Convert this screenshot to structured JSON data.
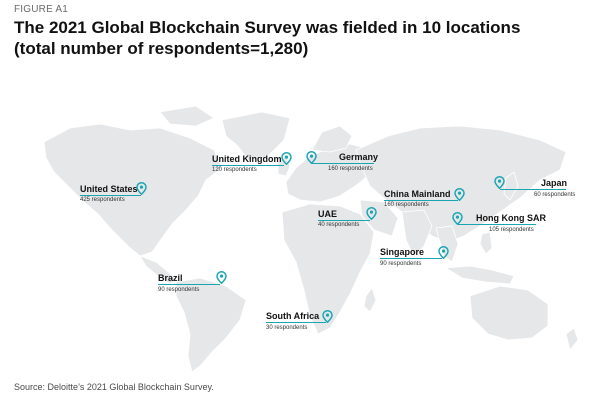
{
  "figure_label": "FIGURE A1",
  "title_line1": "The 2021 Global Blockchain Survey was fielded in 10 locations",
  "title_line2": "(total number of respondents=1,280)",
  "source": "Source: Deloitte’s 2021 Global Blockchain Survey.",
  "colors": {
    "accent": "#1aa5b3",
    "land": "#e6e7e9",
    "text": "#111111"
  },
  "pin_icon": "location-pin-icon",
  "locations": [
    {
      "name": "United Kingdom",
      "respondents": "120 respondents",
      "count": 120
    },
    {
      "name": "Germany",
      "respondents": "160 respondents",
      "count": 160
    },
    {
      "name": "United States",
      "respondents": "425 respondents",
      "count": 425
    },
    {
      "name": "China Mainland",
      "respondents": "160 respondents",
      "count": 160
    },
    {
      "name": "Japan",
      "respondents": "60 respondents",
      "count": 60
    },
    {
      "name": "UAE",
      "respondents": "40 respondents",
      "count": 40
    },
    {
      "name": "Hong Kong SAR",
      "respondents": "105 respondents",
      "count": 105
    },
    {
      "name": "Singapore",
      "respondents": "90 respondents",
      "count": 90
    },
    {
      "name": "Brazil",
      "respondents": "90 respondents",
      "count": 90
    },
    {
      "name": "South Africa",
      "respondents": "30 respondents",
      "count": 30
    }
  ]
}
